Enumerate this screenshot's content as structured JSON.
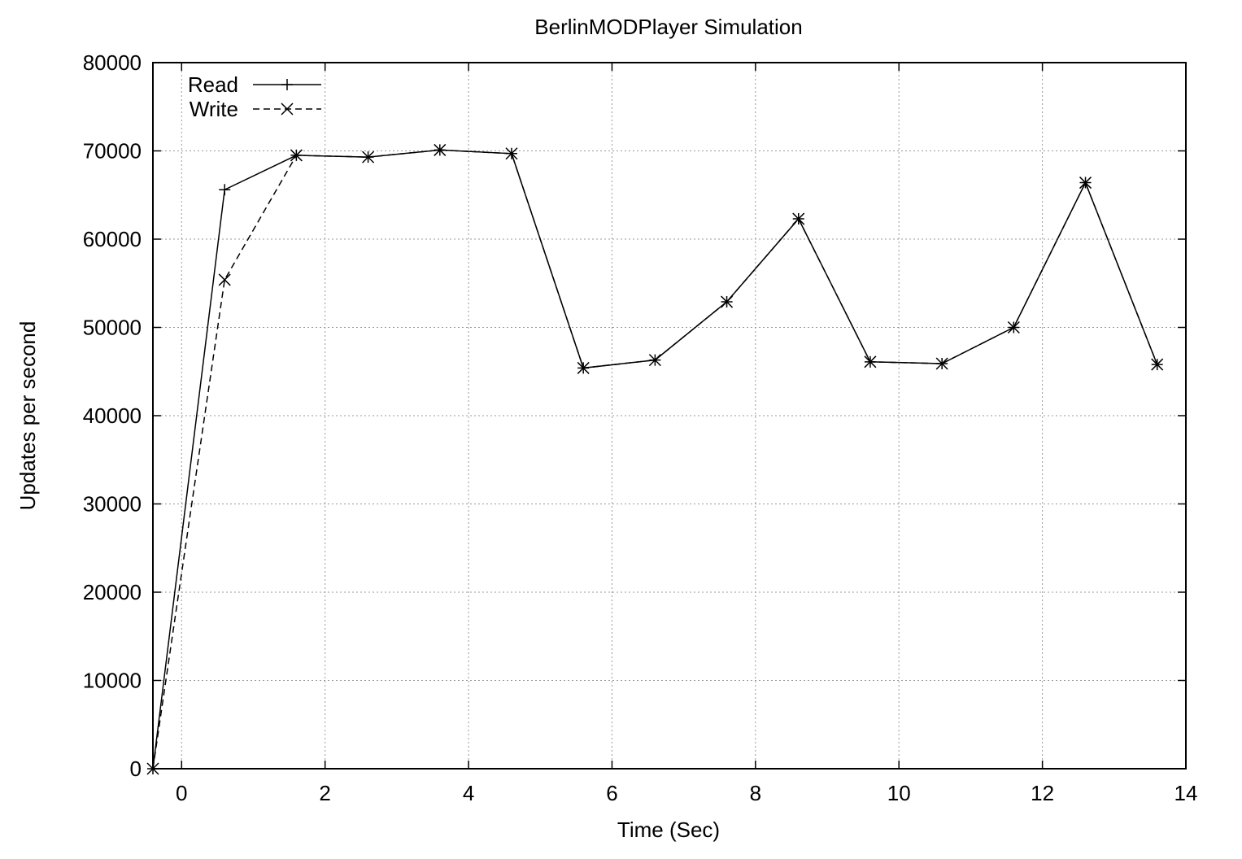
{
  "chart_data": {
    "type": "line",
    "title": "BerlinMODPlayer Simulation",
    "xlabel": "Time (Sec)",
    "ylabel": "Updates per second",
    "xlim": [
      -0.4,
      14
    ],
    "ylim": [
      0,
      80000
    ],
    "xticks": [
      0,
      2,
      4,
      6,
      8,
      10,
      12,
      14
    ],
    "yticks": [
      0,
      10000,
      20000,
      30000,
      40000,
      50000,
      60000,
      70000,
      80000
    ],
    "grid": true,
    "legend_position": "top-left",
    "series": [
      {
        "name": "Read",
        "marker": "plus",
        "line_style": "solid",
        "x": [
          -0.4,
          0.6,
          1.6,
          2.6,
          3.6,
          4.6,
          5.6,
          6.6,
          7.6,
          8.6,
          9.6,
          10.6,
          11.6,
          12.6,
          13.6
        ],
        "y": [
          0,
          65600,
          69500,
          69300,
          70100,
          69700,
          45400,
          46300,
          52900,
          62300,
          46100,
          45900,
          50000,
          66400,
          45800
        ]
      },
      {
        "name": "Write",
        "marker": "cross",
        "line_style": "dashed",
        "x": [
          -0.4,
          0.6,
          1.6,
          2.6,
          3.6,
          4.6,
          5.6,
          6.6,
          7.6,
          8.6,
          9.6,
          10.6,
          11.6,
          12.6,
          13.6
        ],
        "y": [
          0,
          55400,
          69500,
          69300,
          70100,
          69700,
          45400,
          46300,
          52900,
          62300,
          46100,
          45900,
          50000,
          66400,
          45800
        ]
      }
    ]
  }
}
